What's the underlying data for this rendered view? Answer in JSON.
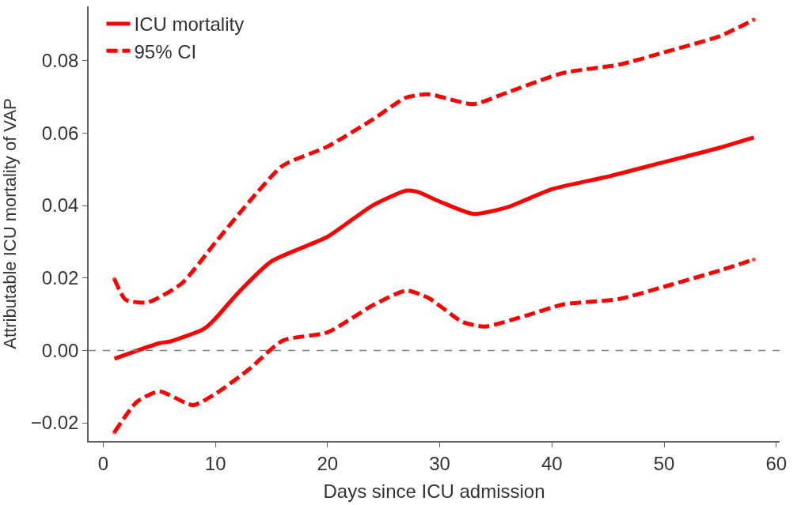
{
  "chart_data": {
    "type": "line",
    "xlabel": "Days since ICU admission",
    "ylabel": "Attributable ICU mortality of VAP",
    "xlim": [
      -1.3,
      60.3
    ],
    "xticks": [
      0,
      10,
      20,
      30,
      40,
      50,
      60
    ],
    "ylim": [
      -0.025,
      0.095
    ],
    "yticks": [
      {
        "value": -0.02,
        "label": "−0.02"
      },
      {
        "value": 0,
        "label": "0.00"
      },
      {
        "value": 0.02,
        "label": "0.02"
      },
      {
        "value": 0.04,
        "label": "0.04"
      },
      {
        "value": 0.06,
        "label": "0.06"
      },
      {
        "value": 0.08,
        "label": "0.08"
      }
    ],
    "grid": false,
    "legend": "top left",
    "marker": "none",
    "ref_lines": [
      {
        "axis": "y",
        "value": 0,
        "color": "#808080",
        "line_style": "dashed"
      }
    ],
    "series": [
      {
        "name": "ICU mortality",
        "color": "#ff0000",
        "line_style": "solid",
        "x": [
          1,
          5,
          6,
          9,
          10,
          12,
          15,
          20,
          24,
          27,
          28,
          30,
          33,
          36,
          40,
          45,
          50,
          55,
          58
        ],
        "values": [
          -0.0023,
          0.002,
          0.0025,
          0.006,
          0.0088,
          0.0158,
          0.0246,
          0.0314,
          0.04,
          0.0441,
          0.0438,
          0.0411,
          0.0377,
          0.0395,
          0.0445,
          0.048,
          0.052,
          0.056,
          0.0588
        ]
      },
      {
        "name": "95% CI",
        "color": "#ff0000",
        "line_style": "dashed",
        "x": [
          1,
          2,
          4,
          7,
          10,
          13,
          16,
          20,
          24,
          27,
          29,
          33,
          36,
          41,
          46,
          50,
          55,
          58
        ],
        "values": [
          0.0197,
          0.014,
          0.0133,
          0.0185,
          0.0298,
          0.041,
          0.051,
          0.0563,
          0.0637,
          0.0698,
          0.0707,
          0.068,
          0.0712,
          0.0766,
          0.0789,
          0.0823,
          0.0868,
          0.0913
        ]
      },
      {
        "color": "#ff0000",
        "line_style": "dashed",
        "x": [
          1,
          3,
          5,
          8,
          10,
          13,
          16,
          20,
          24,
          27,
          29,
          32,
          34,
          38,
          41,
          46,
          50,
          55,
          58
        ],
        "values": [
          -0.0226,
          -0.0142,
          -0.0113,
          -0.0151,
          -0.012,
          -0.0052,
          0.0027,
          0.005,
          0.0124,
          0.0165,
          0.0145,
          0.0079,
          0.0066,
          0.0099,
          0.0127,
          0.0142,
          0.0176,
          0.0221,
          0.0251
        ]
      }
    ]
  }
}
